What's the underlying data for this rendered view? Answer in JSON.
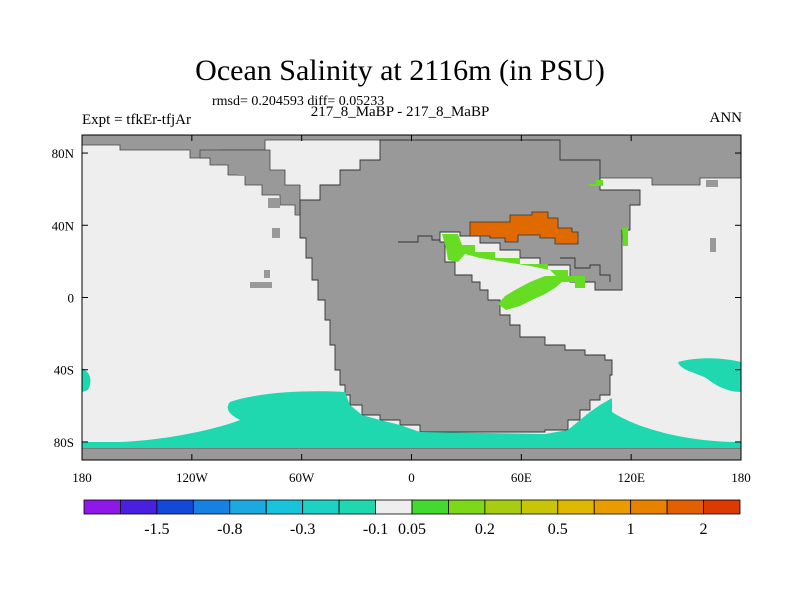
{
  "title": "Ocean Salinity at 2116m (in PSU)",
  "stats": "rmsd= 0.204593 diff= 0.05233",
  "subtitle": "217_8_MaBP - 217_8_MaBP",
  "experiment": "Expt = tfkEr-tfjAr",
  "season": "ANN",
  "map": {
    "lon_range": [
      -180,
      180
    ],
    "lat_range": [
      -90,
      90
    ],
    "x_ticks": [
      {
        "lon": -180,
        "label": "180"
      },
      {
        "lon": -120,
        "label": "120W"
      },
      {
        "lon": -60,
        "label": "60W"
      },
      {
        "lon": 0,
        "label": "0"
      },
      {
        "lon": 60,
        "label": "60E"
      },
      {
        "lon": 120,
        "label": "120E"
      },
      {
        "lon": 180,
        "label": "180"
      }
    ],
    "y_ticks": [
      {
        "lat": 80,
        "label": "80N"
      },
      {
        "lat": 40,
        "label": "40N"
      },
      {
        "lat": 0,
        "label": "0"
      },
      {
        "lat": -40,
        "label": "40S"
      },
      {
        "lat": -80,
        "label": "80S"
      }
    ],
    "colors": {
      "land": "#999999",
      "ocean_background": "#eeeeee",
      "bin_neg_0_1": "#20d8b0",
      "bin_pos_0_05": "#66dd22",
      "bin_pos_1": "#e06a00"
    }
  },
  "colorbar": {
    "colors": [
      "#8f18e8",
      "#4a20e0",
      "#1448d8",
      "#1880e0",
      "#1ea8e0",
      "#18c4dc",
      "#1cd2c4",
      "#20d8b0",
      "#eeeeee",
      "#44d830",
      "#7cd818",
      "#a8cc10",
      "#c8c408",
      "#e0b800",
      "#e89c00",
      "#e88000",
      "#e26000",
      "#dc3a00"
    ],
    "labels": [
      {
        "after_box": 2,
        "text": "-1.5"
      },
      {
        "after_box": 4,
        "text": "-0.8"
      },
      {
        "after_box": 6,
        "text": "-0.3"
      },
      {
        "after_box": 8,
        "text": "-0.1"
      },
      {
        "after_box": 9,
        "text": "0.05"
      },
      {
        "after_box": 11,
        "text": "0.2"
      },
      {
        "after_box": 13,
        "text": "0.5"
      },
      {
        "after_box": 15,
        "text": "1"
      },
      {
        "after_box": 17,
        "text": "2"
      }
    ]
  }
}
